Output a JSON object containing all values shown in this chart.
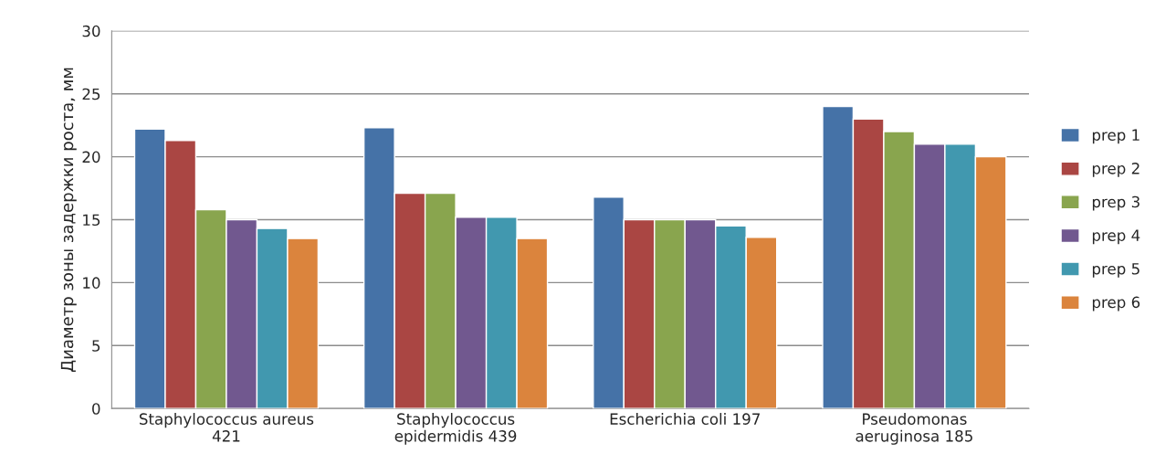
{
  "chart_data": {
    "type": "bar",
    "ylabel": "Диаметр зоны задержки роста, мм",
    "categories": [
      "Staphylococcus aureus\n421",
      "Staphylococcus\nepidermidis 439",
      "Escherichia coli 197",
      "Pseudomonas\naeruginosa 185"
    ],
    "series": [
      {
        "name": "prep 1",
        "color": "#4572a7",
        "values": [
          22.2,
          22.3,
          16.8,
          24.0
        ]
      },
      {
        "name": "prep 2",
        "color": "#aa4643",
        "values": [
          21.3,
          17.1,
          15.0,
          23.0
        ]
      },
      {
        "name": "prep 3",
        "color": "#89a54e",
        "values": [
          15.8,
          17.1,
          15.0,
          22.0
        ]
      },
      {
        "name": "prep 4",
        "color": "#71588f",
        "values": [
          15.0,
          15.2,
          15.0,
          21.0
        ]
      },
      {
        "name": "prep 5",
        "color": "#4198af",
        "values": [
          14.3,
          15.2,
          14.5,
          21.0
        ]
      },
      {
        "name": "prep 6",
        "color": "#db843d",
        "values": [
          13.5,
          13.5,
          13.6,
          20.0
        ]
      }
    ],
    "ylim": [
      0,
      30
    ],
    "yticks": [
      0,
      5,
      10,
      15,
      20,
      25,
      30
    ],
    "grid": "y",
    "legend": "right"
  }
}
